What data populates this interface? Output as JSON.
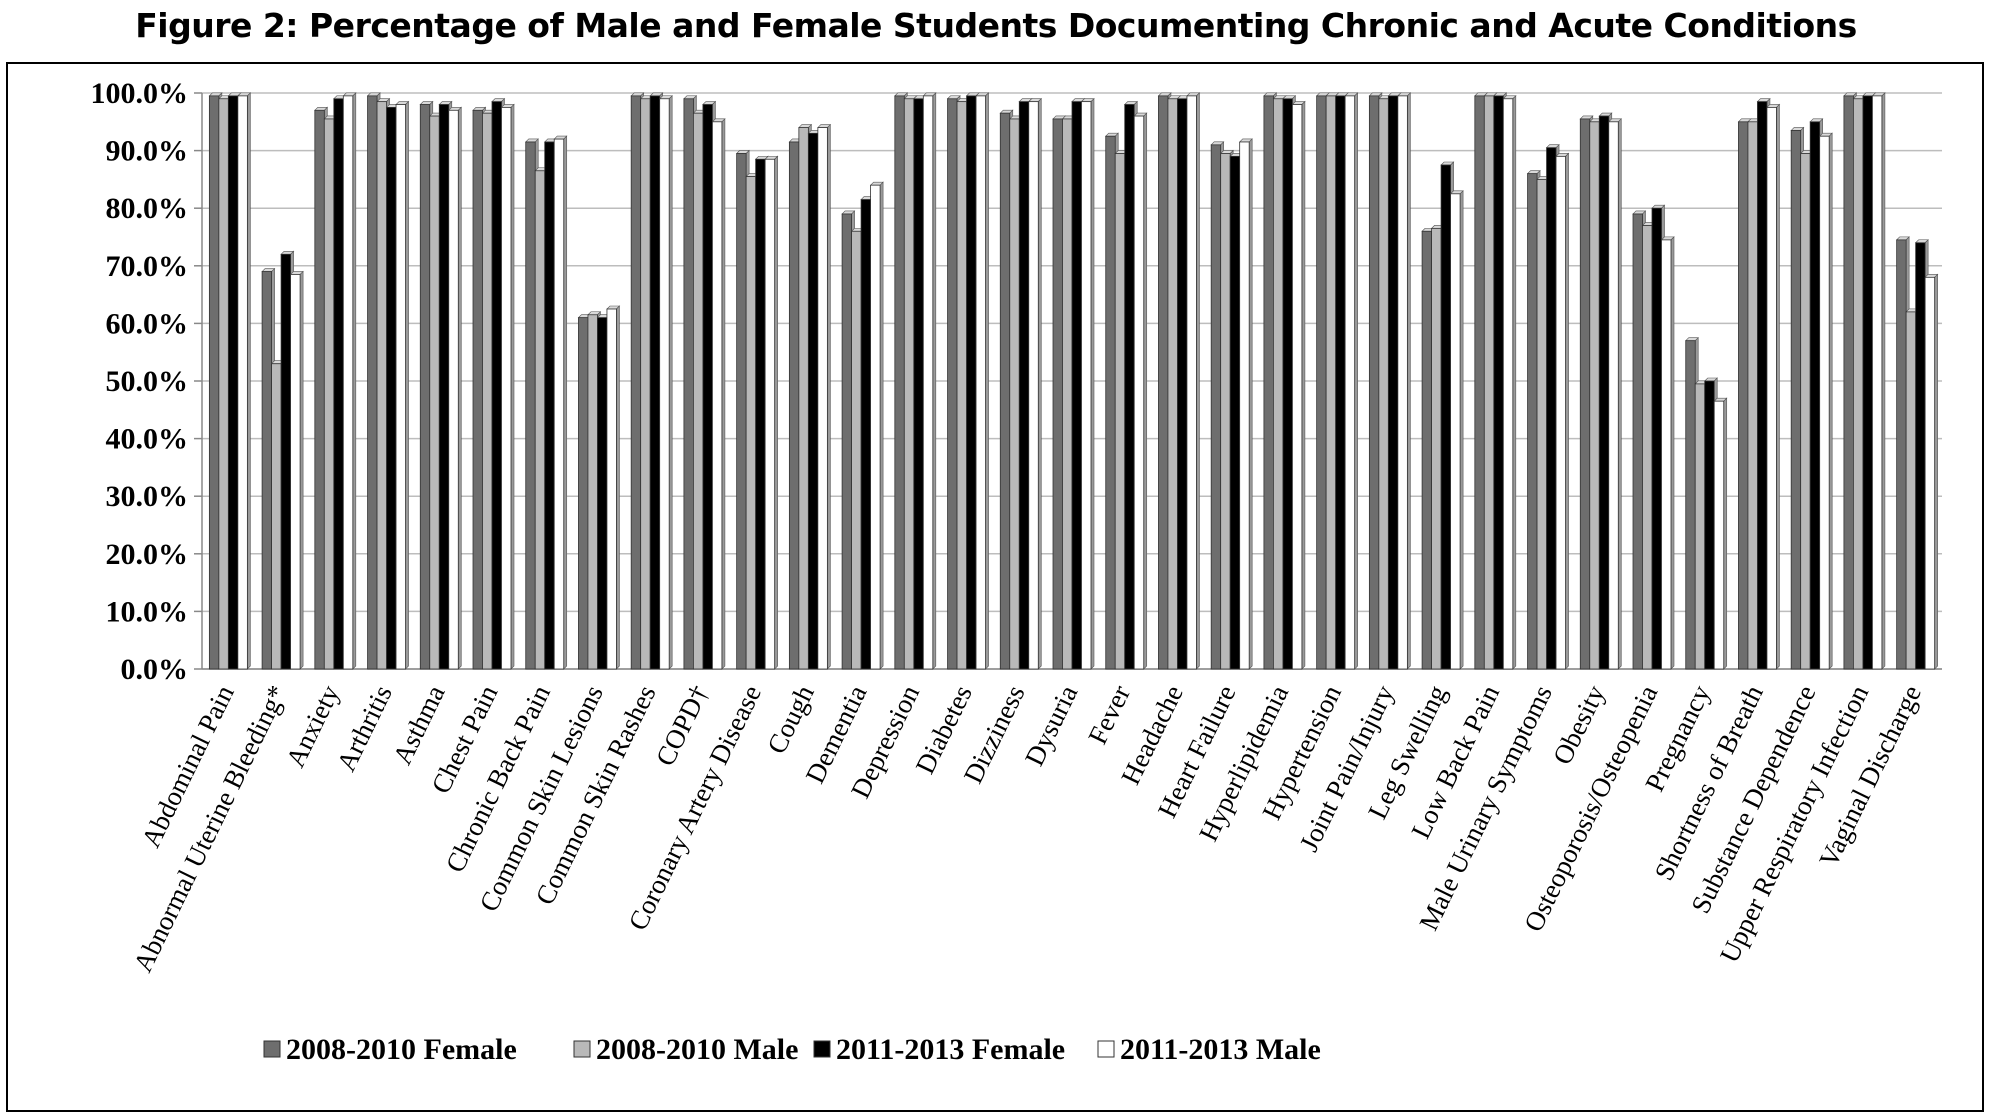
{
  "title": "Figure 2: Percentage of Male and Female Students Documenting Chronic and Acute Conditions",
  "chart_data": {
    "type": "bar",
    "ylim": [
      0,
      100
    ],
    "yticks": [
      "0.0%",
      "10.0%",
      "20.0%",
      "30.0%",
      "40.0%",
      "50.0%",
      "60.0%",
      "70.0%",
      "80.0%",
      "90.0%",
      "100.0%"
    ],
    "grid": true,
    "legend_position": "bottom",
    "categories": [
      "Abdominal Pain",
      "Abnormal Uterine Bleeding*",
      "Anxiety",
      "Arthritis",
      "Asthma",
      "Chest Pain",
      "Chronic Back Pain",
      "Common Skin Lesions",
      "Common Skin Rashes",
      "COPD†",
      "Coronary Artery Disease",
      "Cough",
      "Dementia",
      "Depression",
      "Diabetes",
      "Dizziness",
      "Dysuria",
      "Fever",
      "Headache",
      "Heart Failure",
      "Hyperlipidemia",
      "Hypertension",
      "Joint Pain/Injury",
      "Leg Swelling",
      "Low Back Pain",
      "Male Urinary Symptoms",
      "Obesity",
      "Osteoporosis/Osteopenia",
      "Pregnancy",
      "Shortness of Breath",
      "Substance Dependence",
      "Upper Respiratory Infection",
      "Vaginal Discharge"
    ],
    "series": [
      {
        "name": "2008-2010 Female",
        "color": "#6e6e6e",
        "values": [
          99.5,
          69,
          97,
          99.5,
          98,
          97,
          91.5,
          61,
          99.5,
          99,
          89.5,
          91.5,
          79,
          99.5,
          99,
          96.5,
          95.5,
          92.5,
          99.5,
          91,
          99.5,
          99.5,
          99.5,
          76,
          99.5,
          86,
          95.5,
          79,
          57,
          95,
          93.5,
          99.5,
          74.5
        ]
      },
      {
        "name": "2008-2010 Male",
        "color": "#b9b9b9",
        "values": [
          99,
          53,
          95.5,
          98.5,
          96,
          96.5,
          86.5,
          61.5,
          99,
          96.5,
          85.5,
          94,
          76,
          99,
          98.5,
          95.5,
          95.5,
          89.5,
          99,
          89.5,
          99,
          99.5,
          99,
          76.5,
          99.5,
          85,
          95,
          77,
          49.5,
          95,
          89.5,
          99,
          62
        ]
      },
      {
        "name": "2011-2013 Female",
        "color": "#000000",
        "values": [
          99.5,
          72,
          99,
          97.5,
          98,
          98.5,
          91.5,
          61,
          99.5,
          98,
          88.5,
          93,
          81.5,
          99,
          99.5,
          98.5,
          98.5,
          98,
          99,
          89,
          99,
          99.5,
          99.5,
          87.5,
          99.5,
          90.5,
          96,
          80,
          50,
          98.5,
          95,
          99.5,
          74
        ]
      },
      {
        "name": "2011-2013 Male",
        "color": "#ffffff",
        "values": [
          99.5,
          68.5,
          99.5,
          98,
          97,
          97.5,
          92,
          62.5,
          99,
          95,
          88.5,
          94,
          84,
          99.5,
          99.5,
          98.5,
          98.5,
          96,
          99.5,
          91.5,
          98,
          99.5,
          99.5,
          82.5,
          99,
          89,
          95,
          74.5,
          46.5,
          97.5,
          92.5,
          99.5,
          68
        ]
      }
    ]
  }
}
